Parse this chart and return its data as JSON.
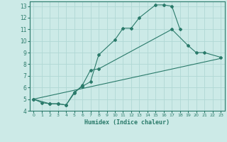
{
  "xlabel": "Humidex (Indice chaleur)",
  "background_color": "#cceae7",
  "grid_color": "#b0d8d4",
  "line_color": "#2a7a6a",
  "xlim": [
    -0.5,
    23.5
  ],
  "ylim": [
    4,
    13.4
  ],
  "xticks": [
    0,
    1,
    2,
    3,
    4,
    5,
    6,
    7,
    8,
    9,
    10,
    11,
    12,
    13,
    14,
    15,
    16,
    17,
    18,
    19,
    20,
    21,
    22,
    23
  ],
  "yticks": [
    4,
    5,
    6,
    7,
    8,
    9,
    10,
    11,
    12,
    13
  ],
  "line1_x": [
    0,
    1,
    2,
    3,
    4,
    5,
    6,
    7,
    8,
    10,
    11,
    12,
    13,
    15,
    16,
    17,
    18
  ],
  "line1_y": [
    5.0,
    4.7,
    4.6,
    4.6,
    4.5,
    5.6,
    6.1,
    6.5,
    8.8,
    10.1,
    11.1,
    11.1,
    12.0,
    13.1,
    13.1,
    13.0,
    11.0
  ],
  "line2_x": [
    0,
    2,
    3,
    4,
    5,
    6,
    7,
    8,
    17,
    19,
    20,
    21,
    23
  ],
  "line2_y": [
    5.0,
    4.6,
    4.6,
    4.5,
    5.5,
    6.2,
    7.5,
    7.6,
    11.0,
    9.6,
    9.0,
    9.0,
    8.6
  ],
  "line3_x": [
    0,
    23
  ],
  "line3_y": [
    5.0,
    8.5
  ]
}
